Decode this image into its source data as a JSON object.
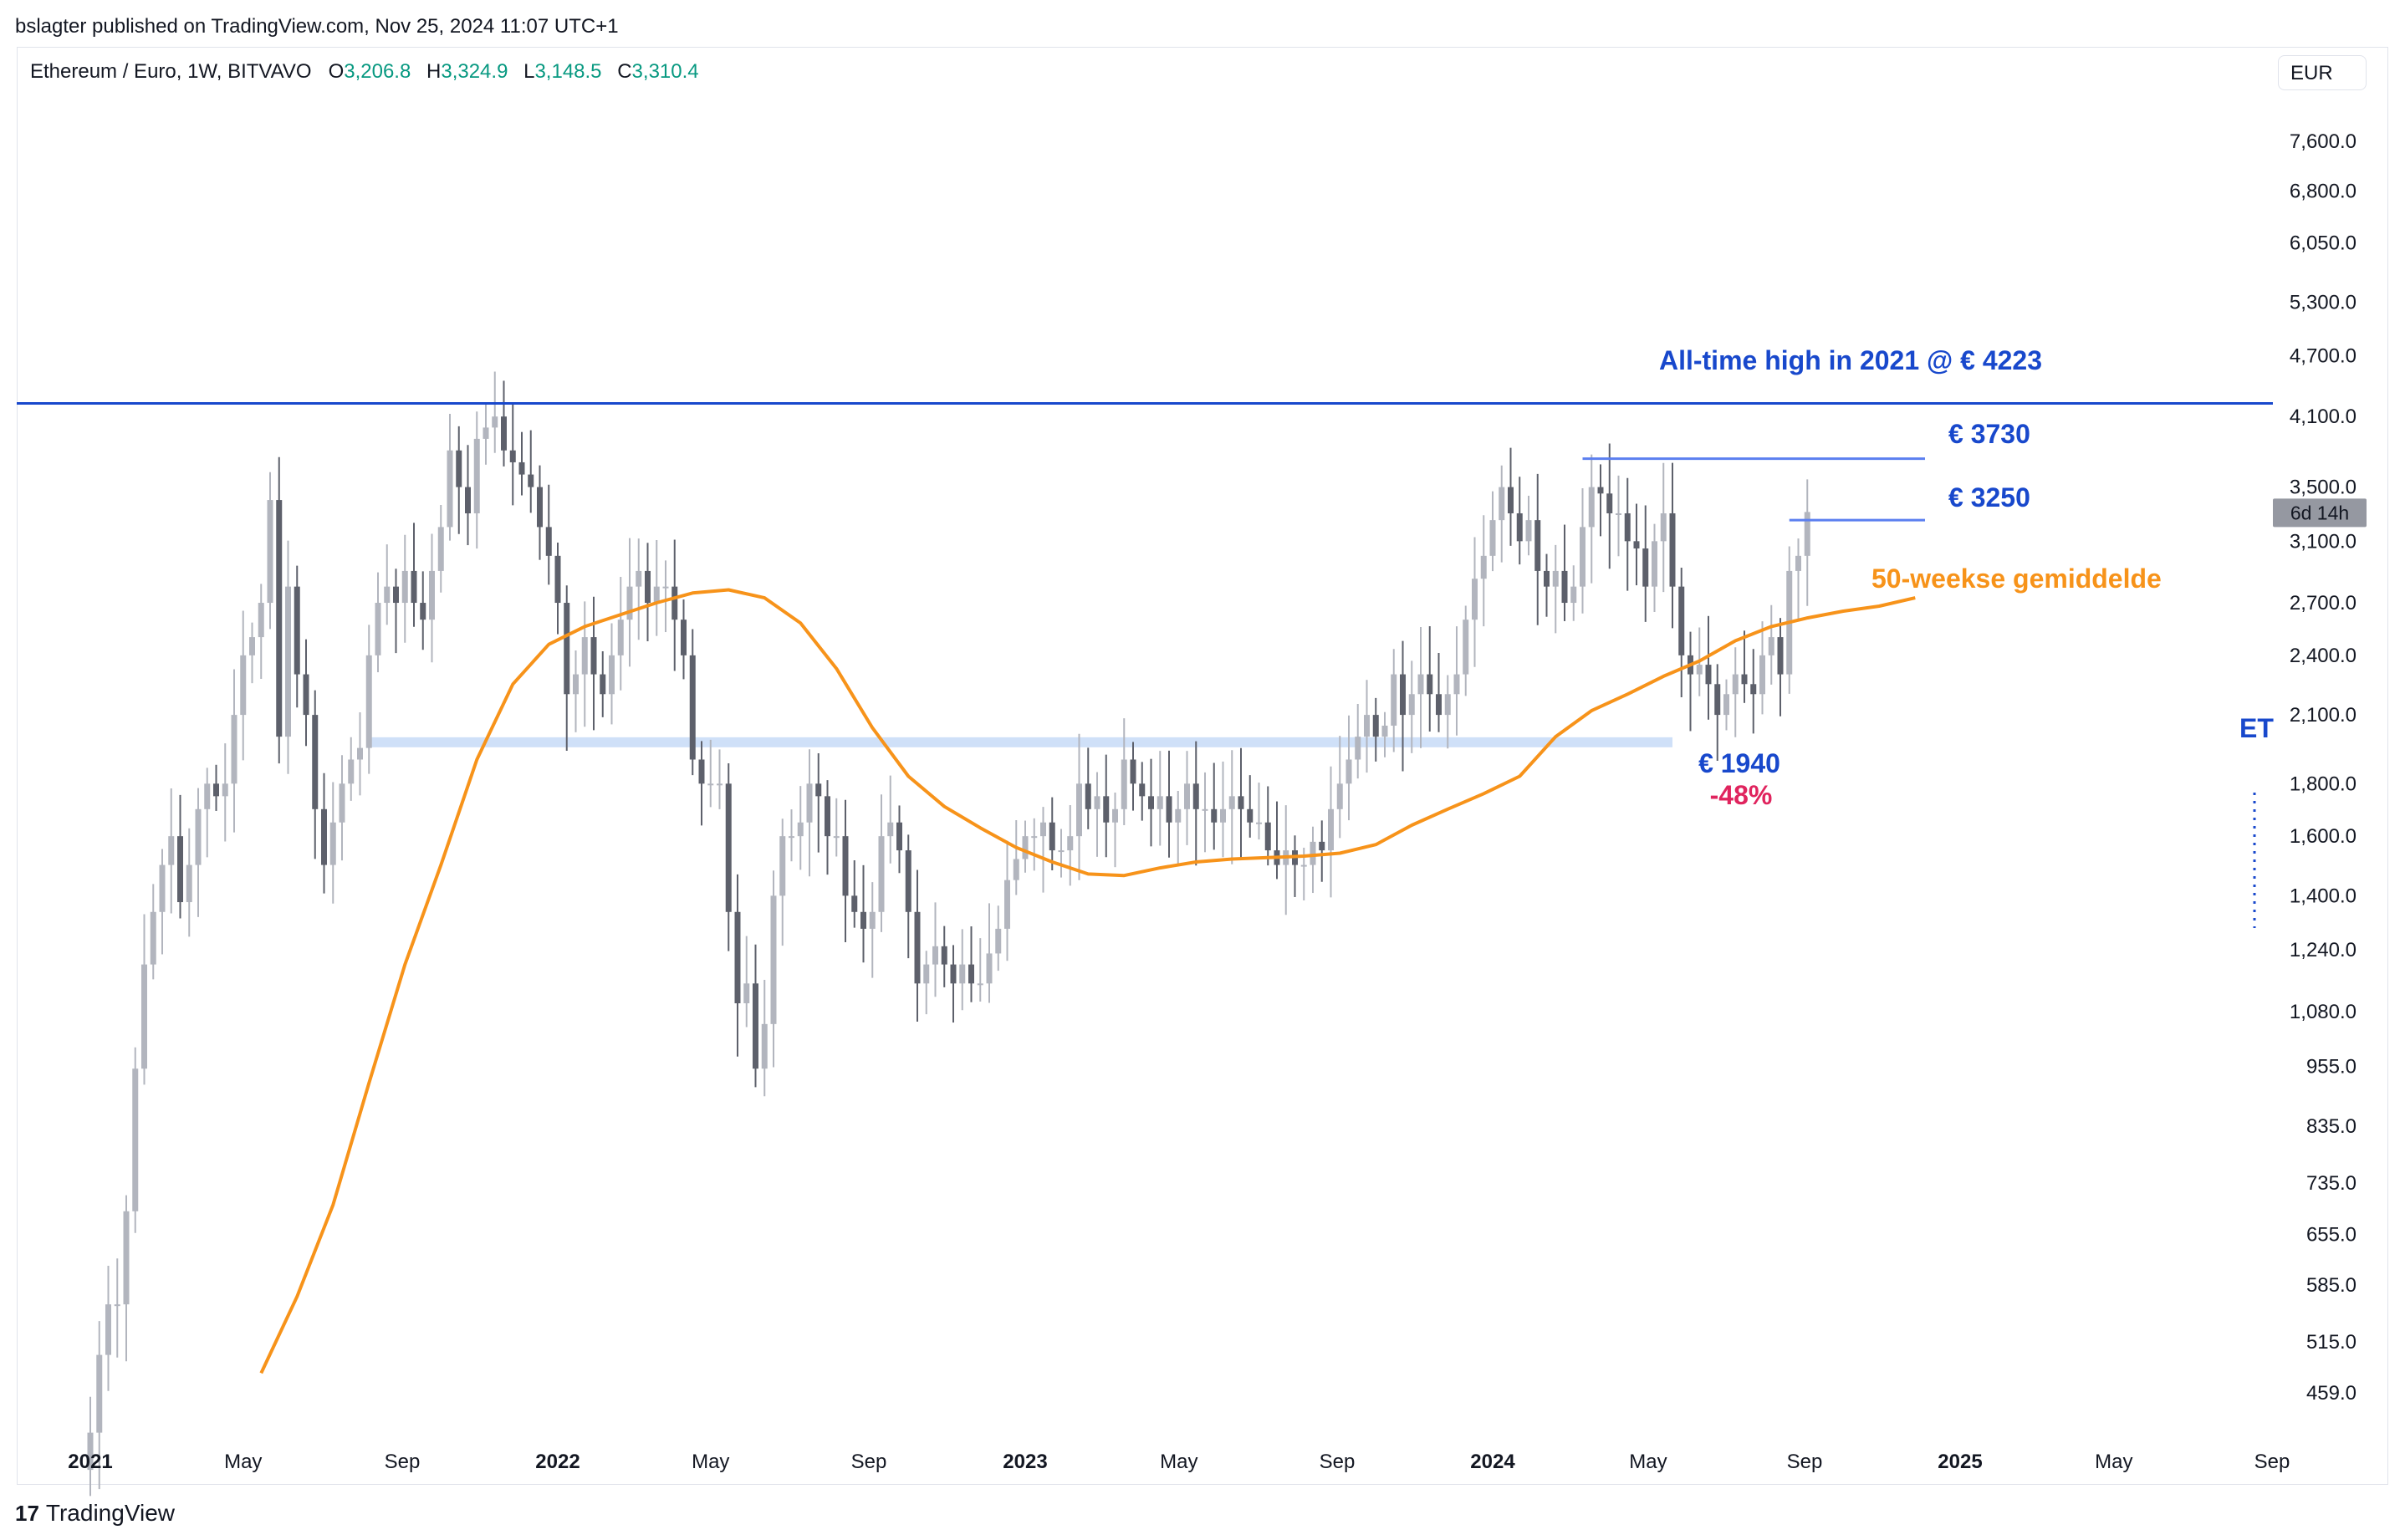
{
  "header": {
    "published": "bslagter published on TradingView.com, Nov 25, 2024 11:07 UTC+1"
  },
  "legend": {
    "symbol": "Ethereum / Euro, 1W, BITVAVO",
    "o_label": "O",
    "o": "3,206.8",
    "h_label": "H",
    "h": "3,324.9",
    "l_label": "L",
    "l": "3,148.5",
    "c_label": "C",
    "c": "3,310.4"
  },
  "currency": "EUR",
  "countdown": "6d 14h",
  "brand": {
    "logo": "17",
    "name": "TradingView"
  },
  "colors": {
    "up": "#b2b5be",
    "down": "#5d606b",
    "ma": "#f7931a",
    "ath": "#1848cc",
    "level": "#5b7ff0",
    "support": "#cfe0f8",
    "pct": "#e0245e",
    "badge": "#9598a1"
  },
  "chart_data": {
    "type": "candlestick",
    "title": "Ethereum / Euro, 1W, BITVAVO",
    "yscale": "log",
    "ylim": [
      415,
      8300
    ],
    "y_ticks": [
      "7,600.0",
      "6,800.0",
      "6,050.0",
      "5,300.0",
      "4,700.0",
      "4,100.0",
      "3,500.0",
      "3,100.0",
      "2,700.0",
      "2,400.0",
      "2,100.0",
      "1,800.0",
      "1,600.0",
      "1,400.0",
      "1,240.0",
      "1,080.0",
      "955.0",
      "835.0",
      "735.0",
      "655.0",
      "585.0",
      "515.0",
      "459.0"
    ],
    "x_ticks": [
      {
        "label": "2021",
        "t": 0.0,
        "bold": true
      },
      {
        "label": "May",
        "t": 17.0
      },
      {
        "label": "Sep",
        "t": 34.7
      },
      {
        "label": "2022",
        "t": 52.0,
        "bold": true
      },
      {
        "label": "May",
        "t": 69.0
      },
      {
        "label": "Sep",
        "t": 86.6
      },
      {
        "label": "2023",
        "t": 104.0,
        "bold": true
      },
      {
        "label": "May",
        "t": 121.1
      },
      {
        "label": "Sep",
        "t": 138.7
      },
      {
        "label": "2024",
        "t": 156.0,
        "bold": true
      },
      {
        "label": "May",
        "t": 173.3
      },
      {
        "label": "Sep",
        "t": 190.7
      },
      {
        "label": "2025",
        "t": 208.0,
        "bold": true
      },
      {
        "label": "May",
        "t": 225.1
      },
      {
        "label": "Sep",
        "t": 242.7
      }
    ],
    "weekly_close": [
      420,
      500,
      560,
      560,
      690,
      950,
      1200,
      1350,
      1500,
      1600,
      1380,
      1500,
      1700,
      1800,
      1750,
      1800,
      2100,
      2400,
      2500,
      2700,
      3400,
      2000,
      2800,
      2300,
      2100,
      1700,
      1500,
      1650,
      1800,
      1900,
      1950,
      2400,
      2700,
      2800,
      2700,
      2900,
      2700,
      2600,
      2900,
      3200,
      3800,
      3500,
      3300,
      3900,
      4000,
      4100,
      3800,
      3700,
      3600,
      3500,
      3200,
      3000,
      2700,
      2200,
      2300,
      2500,
      2300,
      2200,
      2400,
      2600,
      2800,
      2900,
      2700,
      2800,
      2800,
      2600,
      2400,
      1900,
      1800,
      1800,
      1800,
      1350,
      1100,
      1150,
      950,
      1050,
      1400,
      1600,
      1600,
      1650,
      1800,
      1750,
      1600,
      1600,
      1400,
      1350,
      1300,
      1350,
      1600,
      1650,
      1550,
      1350,
      1150,
      1200,
      1250,
      1200,
      1150,
      1200,
      1150,
      1150,
      1230,
      1300,
      1450,
      1520,
      1600,
      1600,
      1650,
      1550,
      1550,
      1600,
      1800,
      1700,
      1750,
      1650,
      1700,
      1900,
      1800,
      1750,
      1700,
      1750,
      1650,
      1700,
      1800,
      1700,
      1700,
      1650,
      1700,
      1750,
      1700,
      1650,
      1650,
      1550,
      1500,
      1550,
      1500,
      1500,
      1580,
      1550,
      1700,
      1800,
      1900,
      2000,
      2100,
      2000,
      2050,
      2300,
      2100,
      2200,
      2300,
      2200,
      2100,
      2200,
      2300,
      2600,
      2850,
      3000,
      3250,
      3500,
      3300,
      3100,
      3250,
      2900,
      2800,
      2900,
      2700,
      2800,
      3200,
      3500,
      3450,
      3300,
      3300,
      3100,
      3050,
      2800,
      3100,
      3300,
      2800,
      2400,
      2300,
      2350,
      2250,
      2100,
      2200,
      2300,
      2250,
      2200,
      2400,
      2500,
      2300,
      2900,
      3000,
      3310
    ],
    "ma50": [
      {
        "t": 19,
        "v": 480
      },
      {
        "t": 23,
        "v": 570
      },
      {
        "t": 27,
        "v": 700
      },
      {
        "t": 31,
        "v": 920
      },
      {
        "t": 35,
        "v": 1200
      },
      {
        "t": 39,
        "v": 1500
      },
      {
        "t": 43,
        "v": 1900
      },
      {
        "t": 47,
        "v": 2250
      },
      {
        "t": 51,
        "v": 2460
      },
      {
        "t": 55,
        "v": 2560
      },
      {
        "t": 59,
        "v": 2630
      },
      {
        "t": 63,
        "v": 2700
      },
      {
        "t": 67,
        "v": 2760
      },
      {
        "t": 71,
        "v": 2780
      },
      {
        "t": 75,
        "v": 2730
      },
      {
        "t": 79,
        "v": 2580
      },
      {
        "t": 83,
        "v": 2330
      },
      {
        "t": 87,
        "v": 2040
      },
      {
        "t": 91,
        "v": 1830
      },
      {
        "t": 95,
        "v": 1710
      },
      {
        "t": 99,
        "v": 1630
      },
      {
        "t": 103,
        "v": 1560
      },
      {
        "t": 107,
        "v": 1510
      },
      {
        "t": 111,
        "v": 1470
      },
      {
        "t": 115,
        "v": 1465
      },
      {
        "t": 119,
        "v": 1490
      },
      {
        "t": 123,
        "v": 1510
      },
      {
        "t": 127,
        "v": 1520
      },
      {
        "t": 131,
        "v": 1525
      },
      {
        "t": 135,
        "v": 1530
      },
      {
        "t": 139,
        "v": 1540
      },
      {
        "t": 143,
        "v": 1570
      },
      {
        "t": 147,
        "v": 1640
      },
      {
        "t": 151,
        "v": 1700
      },
      {
        "t": 155,
        "v": 1760
      },
      {
        "t": 159,
        "v": 1830
      },
      {
        "t": 163,
        "v": 2000
      },
      {
        "t": 167,
        "v": 2120
      },
      {
        "t": 171,
        "v": 2200
      },
      {
        "t": 175,
        "v": 2290
      },
      {
        "t": 179,
        "v": 2370
      },
      {
        "t": 183,
        "v": 2480
      },
      {
        "t": 187,
        "v": 2560
      },
      {
        "t": 191,
        "v": 2610
      },
      {
        "t": 195,
        "v": 2650
      },
      {
        "t": 199,
        "v": 2680
      },
      {
        "t": 203,
        "v": 2730
      }
    ],
    "annotations": [
      {
        "label": "All-time high in 2021 @ € 4223",
        "value": 4223
      },
      {
        "label": "€ 3730",
        "value": 3730
      },
      {
        "label": "€ 3250",
        "value": 3250
      },
      {
        "label": "50-weekse gemiddelde"
      },
      {
        "label": "€ 1940",
        "value": 1940
      },
      {
        "label": "-48%"
      }
    ],
    "support_level": 1975,
    "cut_label": "ET"
  }
}
